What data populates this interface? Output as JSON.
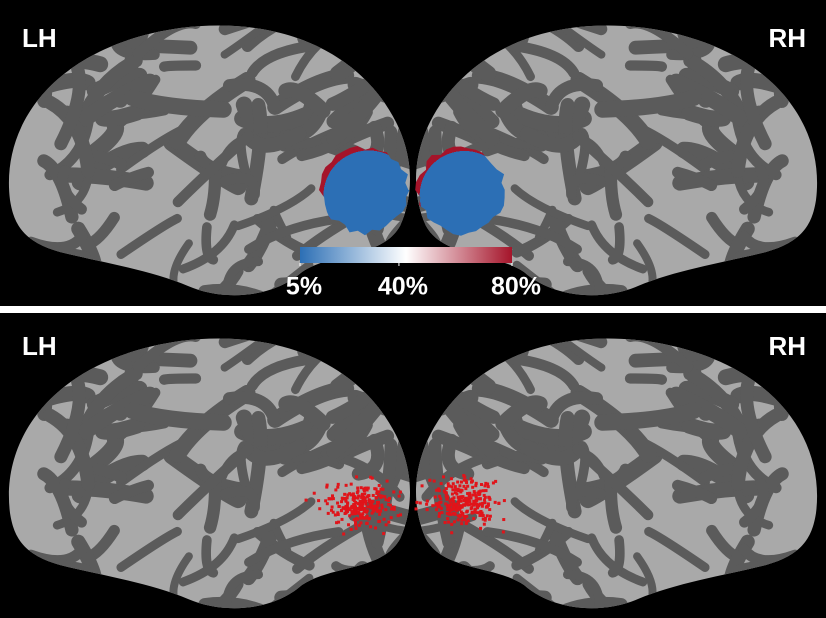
{
  "panels": [
    {
      "left_label": "LH",
      "right_label": "RH"
    },
    {
      "left_label": "LH",
      "right_label": "RH"
    }
  ],
  "colorbar": {
    "lim": [
      5,
      80
    ],
    "colors": [
      "#2c6fb5",
      "#ffffff",
      "#a5142a"
    ],
    "ticks": [
      {
        "value": 5,
        "label": "5%"
      },
      {
        "value": 40,
        "label": "40%"
      },
      {
        "value": 80,
        "label": "80%"
      }
    ]
  }
}
